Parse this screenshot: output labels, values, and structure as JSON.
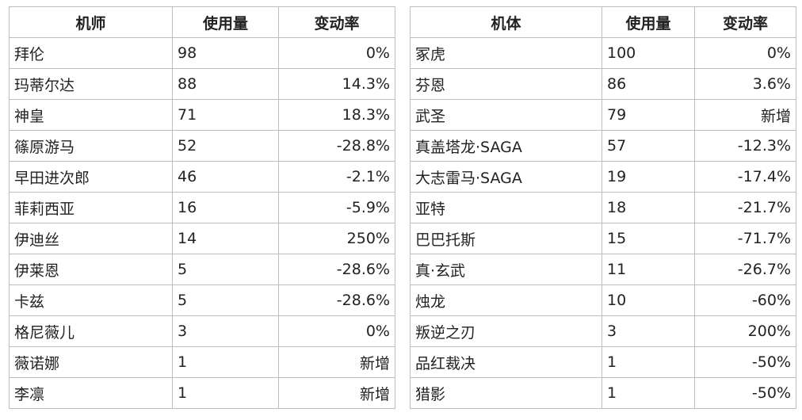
{
  "pilot_table": {
    "headers": [
      "机师",
      "使用量",
      "变动率"
    ],
    "rows": [
      {
        "name": "拜伦",
        "usage": "98",
        "change": "0%"
      },
      {
        "name": "玛蒂尔达",
        "usage": "88",
        "change": "14.3%"
      },
      {
        "name": "神皇",
        "usage": "71",
        "change": "18.3%"
      },
      {
        "name": "篠原游马",
        "usage": "52",
        "change": "-28.8%"
      },
      {
        "name": "早田进次郎",
        "usage": "46",
        "change": "-2.1%"
      },
      {
        "name": "菲莉西亚",
        "usage": "16",
        "change": "-5.9%"
      },
      {
        "name": "伊迪丝",
        "usage": "14",
        "change": "250%"
      },
      {
        "name": "伊莱恩",
        "usage": "5",
        "change": "-28.6%"
      },
      {
        "name": "卡兹",
        "usage": "5",
        "change": "-28.6%"
      },
      {
        "name": "格尼薇儿",
        "usage": "3",
        "change": "0%"
      },
      {
        "name": "薇诺娜",
        "usage": "1",
        "change": "新增"
      },
      {
        "name": "李凛",
        "usage": "1",
        "change": "新增"
      }
    ]
  },
  "mech_table": {
    "headers": [
      "机体",
      "使用量",
      "变动率"
    ],
    "rows": [
      {
        "name": "冢虎",
        "usage": "100",
        "change": "0%"
      },
      {
        "name": "芬恩",
        "usage": "86",
        "change": "3.6%"
      },
      {
        "name": "武圣",
        "usage": "79",
        "change": "新增"
      },
      {
        "name": "真盖塔龙·SAGA",
        "usage": "57",
        "change": "-12.3%"
      },
      {
        "name": "大志雷马·SAGA",
        "usage": "19",
        "change": "-17.4%"
      },
      {
        "name": "亚特",
        "usage": "18",
        "change": "-21.7%"
      },
      {
        "name": "巴巴托斯",
        "usage": "15",
        "change": "-71.7%"
      },
      {
        "name": "真·玄武",
        "usage": "11",
        "change": "-26.7%"
      },
      {
        "name": "烛龙",
        "usage": "10",
        "change": "-60%"
      },
      {
        "name": "叛逆之刃",
        "usage": "3",
        "change": "200%"
      },
      {
        "name": "品红裁决",
        "usage": "1",
        "change": "-50%"
      },
      {
        "name": "猎影",
        "usage": "1",
        "change": "-50%"
      }
    ]
  }
}
